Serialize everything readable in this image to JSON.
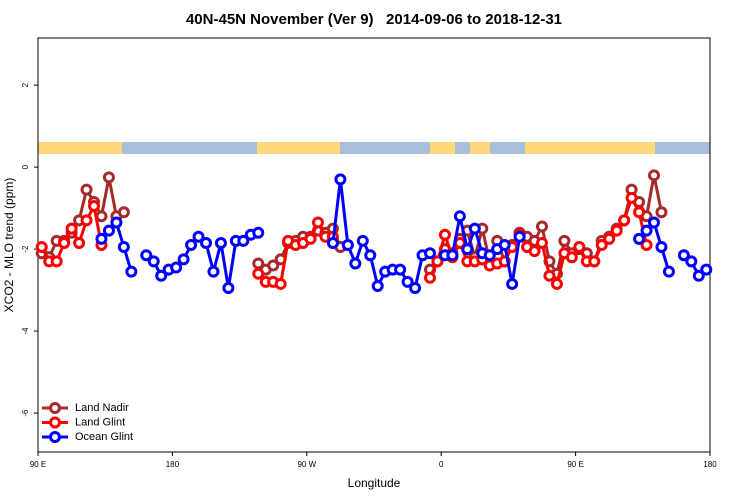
{
  "chart_data": {
    "type": "line",
    "title": "40N-45N November (Ver 9)   2014-09-06 to 2018-12-31",
    "x_label": "Longitude",
    "y_label": "XCO2 - MLO trend (ppm)",
    "xlim": [
      90,
      540
    ],
    "xticks": [
      {
        "value": 90,
        "label": "90 E"
      },
      180,
      {
        "value": 270,
        "label": "90 W"
      },
      {
        "value": 360,
        "label": "0"
      },
      {
        "value": 450,
        "label": "90 E"
      },
      {
        "value": 540,
        "label": "180"
      }
    ],
    "ylim": [
      -6.95,
      3.15
    ],
    "yticks": [
      -6,
      -4,
      -2,
      0,
      2
    ],
    "legend": "bottom-left",
    "series": [
      {
        "name": "Land Nadir",
        "color": "#a52a2a",
        "x": [
          92.5,
          97.5,
          102.5,
          107.5,
          112.5,
          117.5,
          122.5,
          127.5,
          132.5,
          137.5,
          142.5,
          147.5,
          null,
          237.5,
          242.5,
          247.5,
          252.5,
          257.5,
          262.5,
          267.5,
          272.5,
          277.5,
          282.5,
          287.5,
          292.5,
          null,
          352.5,
          357.5,
          362.5,
          367.5,
          372.5,
          377.5,
          382.5,
          387.5,
          392.5,
          397.5,
          402.5,
          407.5,
          412.5,
          417.5,
          422.5,
          427.5,
          432.5,
          437.5,
          442.5,
          447.5,
          452.5,
          457.5,
          462.5,
          467.5,
          472.5,
          477.5,
          482.5,
          487.5,
          492.5,
          497.5,
          502.5,
          507.5
        ],
        "values": [
          -2.1,
          -2.2,
          -1.8,
          -1.8,
          -1.6,
          -1.3,
          -0.55,
          -0.85,
          -1.2,
          -0.25,
          -1.2,
          -1.1,
          null,
          -2.35,
          -2.5,
          -2.4,
          -2.25,
          -1.85,
          -1.8,
          -1.7,
          -1.7,
          -1.55,
          -1.6,
          -1.5,
          -1.95,
          null,
          -2.5,
          -2.3,
          -2.0,
          -2.1,
          -1.75,
          -1.55,
          -2.2,
          -1.5,
          -2.3,
          -1.8,
          -2.3,
          -1.9,
          -1.6,
          -1.7,
          -1.8,
          -1.45,
          -2.3,
          -2.6,
          -1.8,
          -2.1,
          -2.0,
          -2.1,
          -2.3,
          -1.8,
          -1.7,
          -1.5,
          -1.3,
          -0.55,
          -0.85,
          -1.2,
          -0.2,
          -1.1
        ]
      },
      {
        "name": "Land Glint",
        "color": "#ff0000",
        "x": [
          92.5,
          97.5,
          102.5,
          107.5,
          112.5,
          117.5,
          122.5,
          127.5,
          132.5,
          null,
          237.5,
          242.5,
          247.5,
          252.5,
          257.5,
          262.5,
          267.5,
          272.5,
          277.5,
          282.5,
          287.5,
          null,
          352.5,
          357.5,
          362.5,
          367.5,
          372.5,
          377.5,
          382.5,
          387.5,
          392.5,
          397.5,
          402.5,
          407.5,
          412.5,
          417.5,
          422.5,
          427.5,
          432.5,
          437.5,
          442.5,
          447.5,
          452.5,
          457.5,
          462.5,
          467.5,
          472.5,
          477.5,
          482.5,
          487.5,
          492.5,
          497.5
        ],
        "values": [
          -1.95,
          -2.3,
          -2.3,
          -1.85,
          -1.5,
          -1.85,
          -1.3,
          -0.95,
          -1.9,
          null,
          -2.6,
          -2.8,
          -2.8,
          -2.85,
          -1.8,
          -1.9,
          -1.85,
          -1.75,
          -1.35,
          -1.7,
          -1.7,
          null,
          -2.7,
          -2.3,
          -1.65,
          -2.2,
          -1.85,
          -2.3,
          -2.3,
          -2.25,
          -2.4,
          -2.35,
          -2.3,
          -1.95,
          -1.65,
          -1.95,
          -2.05,
          -1.85,
          -2.65,
          -2.85,
          -2.1,
          -2.2,
          -1.95,
          -2.3,
          -2.3,
          -1.9,
          -1.75,
          -1.55,
          -1.3,
          -0.75,
          -1.1,
          -1.9
        ]
      },
      {
        "name": "Ocean Glint",
        "color": "#0000ff",
        "x": [
          132.5,
          137.5,
          142.5,
          147.5,
          152.5,
          null,
          162.5,
          167.5,
          172.5,
          177.5,
          182.5,
          187.5,
          192.5,
          197.5,
          202.5,
          207.5,
          212.5,
          217.5,
          222.5,
          227.5,
          232.5,
          237.5,
          null,
          287.5,
          292.5,
          297.5,
          302.5,
          307.5,
          312.5,
          317.5,
          322.5,
          327.5,
          332.5,
          337.5,
          342.5,
          347.5,
          352.5,
          null,
          362.5,
          367.5,
          372.5,
          377.5,
          382.5,
          387.5,
          392.5,
          397.5,
          402.5,
          407.5,
          412.5,
          null,
          492.5,
          497.5,
          502.5,
          507.5,
          512.5,
          null,
          522.5,
          527.5,
          532.5,
          537.5
        ],
        "values": [
          -1.75,
          -1.55,
          -1.35,
          -1.95,
          -2.55,
          null,
          -2.15,
          -2.3,
          -2.65,
          -2.5,
          -2.45,
          -2.25,
          -1.9,
          -1.7,
          -1.85,
          -2.55,
          -1.85,
          -2.95,
          -1.8,
          -1.8,
          -1.65,
          -1.6,
          null,
          -1.85,
          -0.3,
          -1.9,
          -2.35,
          -1.8,
          -2.15,
          -2.9,
          -2.55,
          -2.5,
          -2.5,
          -2.8,
          -2.95,
          -2.15,
          -2.1,
          null,
          -2.15,
          -2.15,
          -1.2,
          -2.0,
          -1.5,
          -2.1,
          -2.15,
          -2.0,
          -1.9,
          -2.85,
          -1.7,
          null,
          -1.75,
          -1.55,
          -1.35,
          -1.95,
          -2.55,
          null,
          -2.15,
          -2.3,
          -2.65,
          -2.5
        ]
      }
    ]
  }
}
